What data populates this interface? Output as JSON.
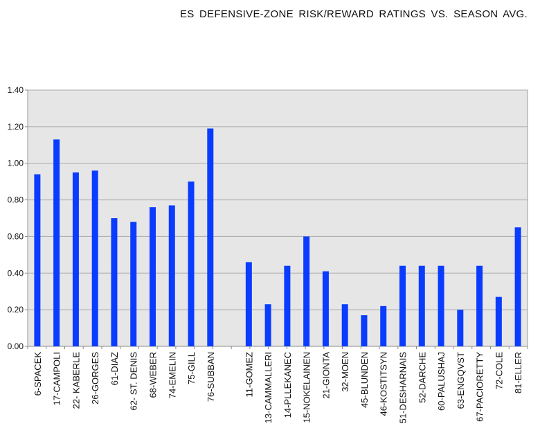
{
  "chart_data": {
    "type": "bar",
    "title": "ES DEFENSIVE-ZONE  RISK/REWARD RATINGS  VS. SEASON AVG.",
    "xlabel": "",
    "ylabel": "",
    "ylim": [
      0,
      1.4
    ],
    "yticks": [
      "0.00",
      "0.20",
      "0.40",
      "0.60",
      "0.80",
      "1.00",
      "1.20",
      "1.40"
    ],
    "grid": true,
    "bar_color": "#0a3cff",
    "plot_bg": "#e6e6e6",
    "categories": [
      "6-SPACEK",
      "17-CAMPOLI",
      "22- KABERLE",
      "26-GORGES",
      "61-DIAZ",
      "62- ST. DENIS",
      "68-WEBER",
      "74-EMELIN",
      "75-GILL",
      "76-SUBBAN",
      "",
      "11-GOMEZ",
      "13-CAMMALLERI",
      "14-PLLEKANEC",
      "15-NOKELAINEN",
      "21-GIONTA",
      "32-MOEN",
      "45-BLUNDEN",
      "46-KOSTITSYN",
      "51-DESHARNAIS",
      "52-DARCHE",
      "60-PALUSHAJ",
      "63-ENGQVST",
      "67-PACIORETTY",
      "72-COLE",
      "81-ELLER"
    ],
    "values": [
      0.94,
      1.13,
      0.95,
      0.96,
      0.7,
      0.68,
      0.76,
      0.77,
      0.9,
      1.19,
      null,
      0.46,
      0.23,
      0.44,
      0.6,
      0.41,
      0.23,
      0.17,
      0.22,
      0.44,
      0.44,
      0.44,
      0.2,
      0.44,
      0.27,
      0.65
    ]
  }
}
